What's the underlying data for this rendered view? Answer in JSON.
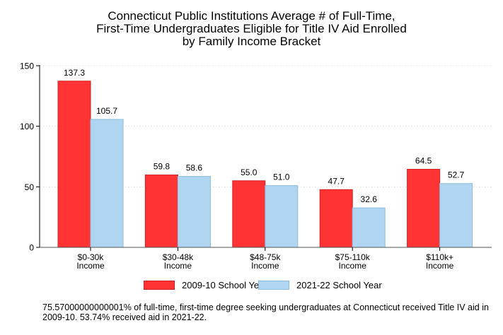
{
  "chart_data": {
    "type": "bar",
    "title_lines": [
      "Connecticut Public Institutions Average # of Full-Time,",
      "First-Time Undergraduates Eligible for Title IV Aid Enrolled",
      "by Family Income Bracket"
    ],
    "categories": [
      [
        "$0-30k",
        "Income"
      ],
      [
        "$30-48k",
        "Income"
      ],
      [
        "$48-75k",
        "Income"
      ],
      [
        "$75-110k",
        "Income"
      ],
      [
        "$110k+",
        "Income"
      ]
    ],
    "series": [
      {
        "name": "2009-10 School Year",
        "values": [
          137.3,
          59.8,
          55.0,
          47.7,
          64.5
        ],
        "labels": [
          "137.3",
          "59.8",
          "55.0",
          "47.7",
          "64.5"
        ],
        "fill": "#ff3333",
        "stroke": "#d42020"
      },
      {
        "name": "2021-22 School Year",
        "values": [
          105.7,
          58.6,
          51.0,
          32.6,
          52.7
        ],
        "labels": [
          "105.7",
          "58.6",
          "51.0",
          "32.6",
          "52.7"
        ],
        "fill": "#afd5f0",
        "stroke": "#8cbde0"
      }
    ],
    "ylim": [
      0,
      150
    ],
    "yticks": [
      0,
      50,
      100,
      150
    ],
    "grid": true,
    "legend_position": "bottom",
    "xlabel": "",
    "ylabel": ""
  },
  "footnote": "75.57000000000001% of full-time, first-time degree seeking undergraduates at Connecticut received Title IV aid in 2009-10. 53.74% received aid in 2021-22."
}
